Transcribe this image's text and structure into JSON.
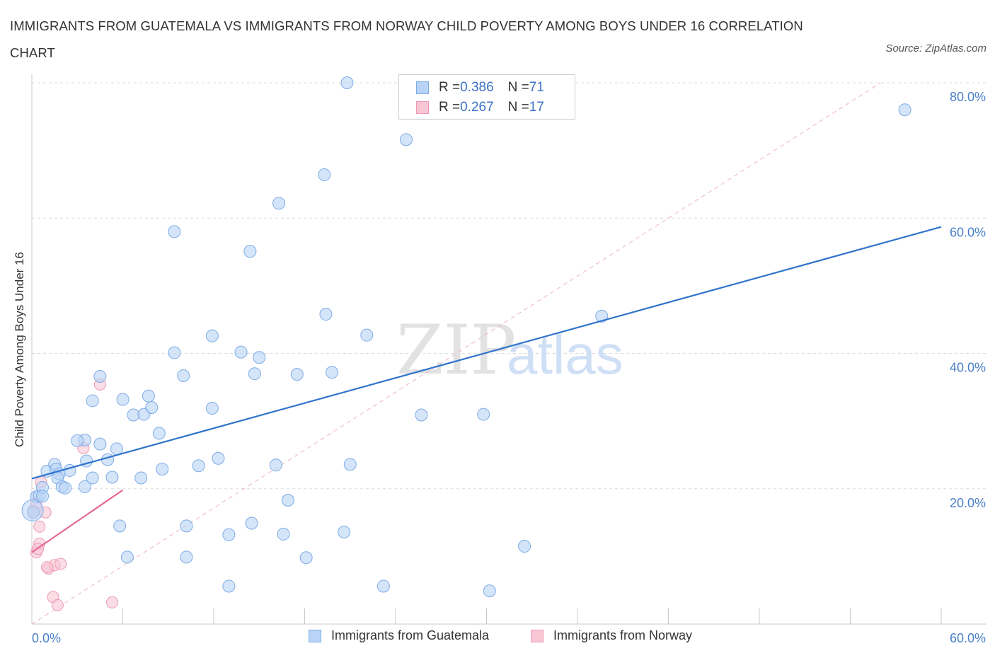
{
  "header": {
    "title": "IMMIGRANTS FROM GUATEMALA VS IMMIGRANTS FROM NORWAY CHILD POVERTY AMONG BOYS UNDER 16 CORRELATION CHART",
    "source": "Source: ZipAtlas.com"
  },
  "watermark": {
    "zip": "ZIP",
    "atlas": "atlas"
  },
  "legend": {
    "rows": [
      {
        "r_label": "R = ",
        "r_value": "0.386",
        "n_label": "N = ",
        "n_value": "71"
      },
      {
        "r_label": "R = ",
        "r_value": "0.267",
        "n_label": "N = ",
        "n_value": "17"
      }
    ]
  },
  "bottom_legend": {
    "guatemala": "Immigrants from Guatemala",
    "norway": "Immigrants from Norway"
  },
  "colors": {
    "guatemala_fill": "#b8d3f5",
    "guatemala_stroke": "#7eabe6",
    "guatemala_line": "#2f74cc",
    "norway_fill": "#f8c6d5",
    "norway_stroke": "#ee9ab3",
    "norway_line": "#e56b93",
    "axis_text": "#4a7fc8",
    "grid": "#dcdcdc"
  },
  "chart_data": {
    "type": "scatter",
    "title": "IMMIGRANTS FROM GUATEMALA VS IMMIGRANTS FROM NORWAY CHILD POVERTY AMONG BOYS UNDER 16 CORRELATION CHART",
    "xlabel": "",
    "ylabel": "Child Poverty Among Boys Under 16",
    "xlim": [
      0,
      60
    ],
    "ylim": [
      0,
      80
    ],
    "x_tick_labels": [
      "0.0%",
      "60.0%"
    ],
    "y_ticks": [
      20,
      40,
      60,
      80
    ],
    "y_tick_labels": [
      "20.0%",
      "40.0%",
      "60.0%",
      "80.0%"
    ],
    "series": [
      {
        "name": "Immigrants from Guatemala",
        "R": 0.386,
        "N": 71,
        "trend": {
          "x": [
            0,
            60
          ],
          "y": [
            21.5,
            58.7
          ]
        },
        "points": [
          [
            0.1,
            16.5
          ],
          [
            0.3,
            18.8
          ],
          [
            0.5,
            19.0
          ],
          [
            0.7,
            20.2
          ],
          [
            0.7,
            18.9
          ],
          [
            1.0,
            22.6
          ],
          [
            1.5,
            23.6
          ],
          [
            1.6,
            22.9
          ],
          [
            1.8,
            22.2
          ],
          [
            1.7,
            21.6
          ],
          [
            2.0,
            20.3
          ],
          [
            2.5,
            22.7
          ],
          [
            3.5,
            27.2
          ],
          [
            3.0,
            27.1
          ],
          [
            3.6,
            24.1
          ],
          [
            4.0,
            21.6
          ],
          [
            3.5,
            20.3
          ],
          [
            4.5,
            26.6
          ],
          [
            5.0,
            24.3
          ],
          [
            5.6,
            25.9
          ],
          [
            5.3,
            21.7
          ],
          [
            6.0,
            33.2
          ],
          [
            5.8,
            14.5
          ],
          [
            6.7,
            30.9
          ],
          [
            7.2,
            21.6
          ],
          [
            7.4,
            31.0
          ],
          [
            7.7,
            33.7
          ],
          [
            7.9,
            32.0
          ],
          [
            8.4,
            28.2
          ],
          [
            8.6,
            22.9
          ],
          [
            6.3,
            9.9
          ],
          [
            4.5,
            36.6
          ],
          [
            4.0,
            33.0
          ],
          [
            9.4,
            40.1
          ],
          [
            9.4,
            58.0
          ],
          [
            10.0,
            36.7
          ],
          [
            10.2,
            14.5
          ],
          [
            11.0,
            23.4
          ],
          [
            11.9,
            31.9
          ],
          [
            11.9,
            42.6
          ],
          [
            12.3,
            24.5
          ],
          [
            13.0,
            13.2
          ],
          [
            13.8,
            40.2
          ],
          [
            14.4,
            55.1
          ],
          [
            14.7,
            37.0
          ],
          [
            15.0,
            39.4
          ],
          [
            14.5,
            14.9
          ],
          [
            16.3,
            62.2
          ],
          [
            16.1,
            23.5
          ],
          [
            16.6,
            13.3
          ],
          [
            16.9,
            18.3
          ],
          [
            17.5,
            36.9
          ],
          [
            18.1,
            9.8
          ],
          [
            19.3,
            66.4
          ],
          [
            19.4,
            45.8
          ],
          [
            19.8,
            37.2
          ],
          [
            20.8,
            80.0
          ],
          [
            20.6,
            13.6
          ],
          [
            21.0,
            23.6
          ],
          [
            22.1,
            42.7
          ],
          [
            23.2,
            5.6
          ],
          [
            24.7,
            71.6
          ],
          [
            25.7,
            30.9
          ],
          [
            29.8,
            31.0
          ],
          [
            30.2,
            4.9
          ],
          [
            32.5,
            11.5
          ],
          [
            37.6,
            45.5
          ],
          [
            57.6,
            76.0
          ],
          [
            13.0,
            5.6
          ],
          [
            10.2,
            9.9
          ],
          [
            2.2,
            20.1
          ]
        ]
      },
      {
        "name": "Immigrants from Norway",
        "R": 0.267,
        "N": 17,
        "trend": {
          "x": [
            0,
            6
          ],
          "y": [
            10.6,
            19.8
          ]
        },
        "points": [
          [
            0.1,
            16.7
          ],
          [
            0.3,
            17.8
          ],
          [
            0.6,
            21.0
          ],
          [
            0.5,
            14.4
          ],
          [
            0.9,
            16.5
          ],
          [
            0.5,
            11.9
          ],
          [
            0.3,
            10.6
          ],
          [
            0.4,
            11.1
          ],
          [
            1.1,
            8.2
          ],
          [
            1.5,
            8.7
          ],
          [
            1.9,
            8.9
          ],
          [
            1.4,
            4.0
          ],
          [
            1.7,
            2.8
          ],
          [
            4.5,
            35.4
          ],
          [
            3.4,
            26.0
          ],
          [
            5.3,
            3.2
          ],
          [
            1.0,
            8.4
          ]
        ]
      }
    ]
  }
}
